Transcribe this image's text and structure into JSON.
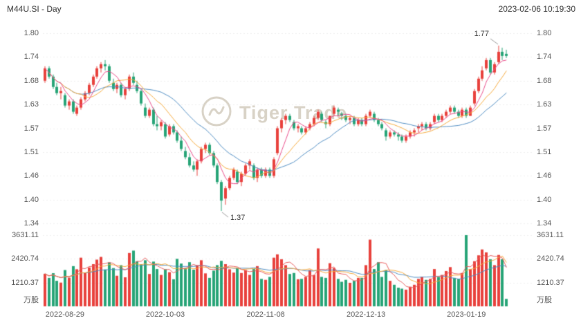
{
  "header": {
    "symbol_title": "M44U.SI - Day",
    "datetime": "2023-02-06 10:19:30"
  },
  "watermark": {
    "text": "Tiger Trade",
    "icon": "tiger-coin-icon"
  },
  "annotations": {
    "high_label": "1.77",
    "low_label": "1.37"
  },
  "axes": {
    "price_ticks": [
      "1.80",
      "1.74",
      "1.68",
      "1.63",
      "1.57",
      "1.51",
      "1.46",
      "1.40",
      "1.34"
    ],
    "volume_ticks": [
      "3631.11",
      "2420.74",
      "1210.37"
    ],
    "volume_unit": "万股",
    "x_ticks": [
      {
        "label": "2022-08-29",
        "index": 5
      },
      {
        "label": "2022-10-03",
        "index": 30
      },
      {
        "label": "2022-11-08",
        "index": 55
      },
      {
        "label": "2022-12-13",
        "index": 80
      },
      {
        "label": "2023-01-19",
        "index": 105
      }
    ]
  },
  "colors": {
    "up": "#e8413c",
    "down": "#27a477",
    "ma_fast": "#e94c8a",
    "ma_mid": "#f5a93b",
    "ma_slow": "#4e8cc2",
    "vma_fast": "#e85d5d",
    "vma_mid": "#f5a93b",
    "vma_slow": "#4e8cc2",
    "grid": "#efefef",
    "pointer": "#999999",
    "text_primary": "#2f2f2f",
    "text_axis": "#555555",
    "watermark": "#d8d2c6"
  },
  "chart_data": {
    "type": "candlestick",
    "title": "M44U.SI - Day",
    "price_range": [
      1.34,
      1.8
    ],
    "volume_range": [
      0,
      3631.11
    ],
    "volume_unit": "万股",
    "ma_periods": [
      5,
      10,
      20
    ],
    "columns": [
      "date",
      "open",
      "high",
      "low",
      "close",
      "volume_wan"
    ],
    "candles": [
      [
        "2022-08-22",
        1.685,
        1.72,
        1.68,
        1.715,
        1660
      ],
      [
        "2022-08-23",
        1.715,
        1.72,
        1.69,
        1.695,
        1450
      ],
      [
        "2022-08-24",
        1.695,
        1.7,
        1.665,
        1.67,
        1690
      ],
      [
        "2022-08-25",
        1.67,
        1.68,
        1.65,
        1.655,
        1300
      ],
      [
        "2022-08-26",
        1.655,
        1.67,
        1.64,
        1.66,
        1210
      ],
      [
        "2022-08-29",
        1.65,
        1.655,
        1.62,
        1.625,
        1850
      ],
      [
        "2022-08-30",
        1.625,
        1.64,
        1.615,
        1.635,
        1460
      ],
      [
        "2022-08-31",
        1.635,
        1.64,
        1.605,
        1.61,
        2050
      ],
      [
        "2022-09-01",
        1.605,
        1.625,
        1.6,
        1.62,
        1890
      ],
      [
        "2022-09-02",
        1.62,
        1.645,
        1.615,
        1.64,
        2480
      ],
      [
        "2022-09-05",
        1.64,
        1.66,
        1.635,
        1.655,
        1720
      ],
      [
        "2022-09-06",
        1.655,
        1.68,
        1.65,
        1.675,
        1980
      ],
      [
        "2022-09-07",
        1.675,
        1.7,
        1.67,
        1.695,
        2150
      ],
      [
        "2022-09-08",
        1.695,
        1.72,
        1.69,
        1.715,
        2380
      ],
      [
        "2022-09-09",
        1.715,
        1.73,
        1.705,
        1.725,
        2520
      ],
      [
        "2022-09-12",
        1.725,
        1.735,
        1.71,
        1.72,
        1880
      ],
      [
        "2022-09-13",
        1.72,
        1.725,
        1.68,
        1.685,
        2240
      ],
      [
        "2022-09-14",
        1.68,
        1.69,
        1.66,
        1.665,
        1950
      ],
      [
        "2022-09-15",
        1.665,
        1.68,
        1.655,
        1.675,
        1560
      ],
      [
        "2022-09-16",
        1.675,
        1.68,
        1.645,
        1.65,
        2100
      ],
      [
        "2022-09-19",
        1.65,
        1.67,
        1.64,
        1.665,
        1480
      ],
      [
        "2022-09-20",
        1.665,
        1.7,
        1.66,
        1.695,
        2720
      ],
      [
        "2022-09-21",
        1.695,
        1.705,
        1.675,
        1.68,
        2840
      ],
      [
        "2022-09-22",
        1.675,
        1.685,
        1.655,
        1.66,
        2300
      ],
      [
        "2022-09-23",
        1.66,
        1.665,
        1.625,
        1.63,
        2150
      ],
      [
        "2022-09-26",
        1.62,
        1.63,
        1.595,
        1.6,
        2350
      ],
      [
        "2022-09-27",
        1.6,
        1.62,
        1.595,
        1.615,
        1650
      ],
      [
        "2022-09-28",
        1.615,
        1.62,
        1.575,
        1.58,
        2280
      ],
      [
        "2022-09-29",
        1.58,
        1.6,
        1.565,
        1.575,
        1900
      ],
      [
        "2022-09-30",
        1.575,
        1.59,
        1.565,
        1.585,
        1600
      ],
      [
        "2022-10-03",
        1.58,
        1.585,
        1.545,
        1.55,
        1890
      ],
      [
        "2022-10-04",
        1.555,
        1.58,
        1.55,
        1.575,
        1740
      ],
      [
        "2022-10-05",
        1.575,
        1.58,
        1.555,
        1.56,
        1380
      ],
      [
        "2022-10-06",
        1.56,
        1.565,
        1.535,
        1.54,
        2420
      ],
      [
        "2022-10-07",
        1.54,
        1.55,
        1.515,
        1.52,
        2180
      ],
      [
        "2022-10-10",
        1.515,
        1.525,
        1.495,
        1.5,
        1950
      ],
      [
        "2022-10-11",
        1.5,
        1.51,
        1.475,
        1.48,
        2250
      ],
      [
        "2022-10-12",
        1.48,
        1.49,
        1.465,
        1.47,
        1870
      ],
      [
        "2022-10-13",
        1.47,
        1.495,
        1.455,
        1.49,
        2100
      ],
      [
        "2022-10-14",
        1.49,
        1.525,
        1.485,
        1.52,
        2350
      ],
      [
        "2022-10-17",
        1.52,
        1.535,
        1.51,
        1.53,
        1680
      ],
      [
        "2022-10-18",
        1.53,
        1.535,
        1.505,
        1.51,
        1450
      ],
      [
        "2022-10-19",
        1.51,
        1.515,
        1.475,
        1.48,
        1820
      ],
      [
        "2022-10-20",
        1.48,
        1.485,
        1.435,
        1.44,
        2100
      ],
      [
        "2022-10-21",
        1.44,
        1.445,
        1.37,
        1.395,
        2320
      ],
      [
        "2022-10-25",
        1.4,
        1.43,
        1.385,
        1.425,
        2150
      ],
      [
        "2022-10-26",
        1.425,
        1.455,
        1.42,
        1.45,
        1890
      ],
      [
        "2022-10-27",
        1.45,
        1.475,
        1.445,
        1.47,
        1720
      ],
      [
        "2022-10-28",
        1.465,
        1.47,
        1.435,
        1.44,
        1950
      ],
      [
        "2022-10-31",
        1.44,
        1.465,
        1.43,
        1.46,
        1700
      ],
      [
        "2022-11-01",
        1.46,
        1.485,
        1.455,
        1.48,
        1850
      ],
      [
        "2022-11-02",
        1.48,
        1.495,
        1.47,
        1.49,
        1600
      ],
      [
        "2022-11-03",
        1.48,
        1.485,
        1.445,
        1.45,
        1900
      ],
      [
        "2022-11-04",
        1.45,
        1.475,
        1.44,
        1.47,
        2050
      ],
      [
        "2022-11-07",
        1.47,
        1.475,
        1.45,
        1.455,
        1400
      ],
      [
        "2022-11-08",
        1.455,
        1.475,
        1.45,
        1.47,
        1350
      ],
      [
        "2022-11-09",
        1.47,
        1.475,
        1.45,
        1.455,
        1500
      ],
      [
        "2022-11-10",
        1.455,
        1.5,
        1.45,
        1.495,
        2480
      ],
      [
        "2022-11-11",
        1.51,
        1.575,
        1.505,
        1.57,
        2650
      ],
      [
        "2022-11-14",
        1.57,
        1.595,
        1.56,
        1.59,
        2400
      ],
      [
        "2022-11-15",
        1.59,
        1.605,
        1.58,
        1.6,
        2100
      ],
      [
        "2022-11-16",
        1.6,
        1.605,
        1.585,
        1.59,
        1650
      ],
      [
        "2022-11-17",
        1.585,
        1.59,
        1.565,
        1.57,
        1700
      ],
      [
        "2022-11-18",
        1.57,
        1.58,
        1.56,
        1.575,
        1380
      ],
      [
        "2022-11-21",
        1.57,
        1.575,
        1.555,
        1.56,
        1400
      ],
      [
        "2022-11-22",
        1.56,
        1.575,
        1.555,
        1.57,
        1500
      ],
      [
        "2022-11-23",
        1.57,
        1.585,
        1.565,
        1.58,
        1850
      ],
      [
        "2022-11-24",
        1.58,
        1.6,
        1.575,
        1.595,
        1600
      ],
      [
        "2022-11-25",
        1.595,
        1.615,
        1.59,
        1.61,
        2950
      ],
      [
        "2022-11-28",
        1.605,
        1.61,
        1.585,
        1.59,
        1500
      ],
      [
        "2022-11-29",
        1.585,
        1.59,
        1.57,
        1.58,
        1450
      ],
      [
        "2022-11-30",
        1.58,
        1.6,
        1.575,
        1.6,
        2200
      ],
      [
        "2022-12-01",
        1.605,
        1.625,
        1.6,
        1.62,
        1950
      ],
      [
        "2022-12-02",
        1.615,
        1.62,
        1.6,
        1.61,
        1400
      ],
      [
        "2022-12-05",
        1.605,
        1.61,
        1.59,
        1.6,
        1250
      ],
      [
        "2022-12-06",
        1.6,
        1.605,
        1.585,
        1.59,
        1350
      ],
      [
        "2022-12-07",
        1.59,
        1.6,
        1.58,
        1.595,
        1200
      ],
      [
        "2022-12-08",
        1.595,
        1.6,
        1.575,
        1.58,
        1300
      ],
      [
        "2022-12-09",
        1.58,
        1.595,
        1.575,
        1.59,
        1450
      ],
      [
        "2022-12-12",
        1.59,
        1.595,
        1.575,
        1.58,
        1450
      ],
      [
        "2022-12-13",
        1.58,
        1.605,
        1.575,
        1.6,
        2100
      ],
      [
        "2022-12-14",
        1.6,
        1.615,
        1.595,
        1.61,
        3400
      ],
      [
        "2022-12-15",
        1.605,
        1.61,
        1.585,
        1.59,
        1900
      ],
      [
        "2022-12-16",
        1.59,
        1.595,
        1.575,
        1.58,
        2250
      ],
      [
        "2022-12-19",
        1.58,
        1.585,
        1.565,
        1.57,
        1500
      ],
      [
        "2022-12-20",
        1.565,
        1.57,
        1.54,
        1.55,
        1850
      ],
      [
        "2022-12-21",
        1.55,
        1.565,
        1.545,
        1.56,
        1300
      ],
      [
        "2022-12-22",
        1.56,
        1.565,
        1.55,
        1.555,
        1100
      ],
      [
        "2022-12-23",
        1.555,
        1.56,
        1.54,
        1.55,
        950
      ],
      [
        "2022-12-27",
        1.55,
        1.555,
        1.535,
        1.54,
        900
      ],
      [
        "2022-12-28",
        1.54,
        1.555,
        1.535,
        1.55,
        850
      ],
      [
        "2022-12-29",
        1.55,
        1.565,
        1.545,
        1.56,
        1000
      ],
      [
        "2022-12-30",
        1.56,
        1.57,
        1.55,
        1.565,
        1100
      ],
      [
        "2023-01-03",
        1.57,
        1.58,
        1.56,
        1.575,
        1400
      ],
      [
        "2023-01-04",
        1.575,
        1.585,
        1.565,
        1.58,
        1500
      ],
      [
        "2023-01-05",
        1.58,
        1.585,
        1.565,
        1.57,
        1350
      ],
      [
        "2023-01-06",
        1.57,
        1.585,
        1.565,
        1.58,
        1400
      ],
      [
        "2023-01-09",
        1.585,
        1.605,
        1.58,
        1.6,
        1900
      ],
      [
        "2023-01-10",
        1.6,
        1.605,
        1.585,
        1.59,
        1500
      ],
      [
        "2023-01-11",
        1.59,
        1.605,
        1.585,
        1.6,
        1600
      ],
      [
        "2023-01-12",
        1.6,
        1.615,
        1.595,
        1.61,
        1800
      ],
      [
        "2023-01-13",
        1.61,
        1.625,
        1.605,
        1.62,
        2000
      ],
      [
        "2023-01-16",
        1.62,
        1.625,
        1.605,
        1.61,
        1450
      ],
      [
        "2023-01-17",
        1.61,
        1.615,
        1.595,
        1.6,
        1400
      ],
      [
        "2023-01-18",
        1.6,
        1.62,
        1.595,
        1.615,
        1700
      ],
      [
        "2023-01-19",
        1.615,
        1.62,
        1.595,
        1.6,
        3631.11
      ],
      [
        "2023-01-20",
        1.6,
        1.625,
        1.6,
        1.62,
        1900
      ],
      [
        "2023-01-25",
        1.63,
        1.665,
        1.625,
        1.66,
        2300
      ],
      [
        "2023-01-26",
        1.66,
        1.695,
        1.655,
        1.69,
        2600
      ],
      [
        "2023-01-27",
        1.69,
        1.72,
        1.685,
        1.71,
        2900
      ],
      [
        "2023-01-30",
        1.715,
        1.74,
        1.71,
        1.735,
        2750
      ],
      [
        "2023-01-31",
        1.735,
        1.74,
        1.7,
        1.705,
        2400
      ],
      [
        "2023-02-01",
        1.705,
        1.73,
        1.7,
        1.725,
        2100
      ],
      [
        "2023-02-02",
        1.73,
        1.77,
        1.725,
        1.755,
        2620
      ],
      [
        "2023-02-03",
        1.755,
        1.765,
        1.735,
        1.745,
        2400
      ],
      [
        "2023-02-06",
        1.75,
        1.76,
        1.74,
        1.745,
        380
      ]
    ]
  }
}
